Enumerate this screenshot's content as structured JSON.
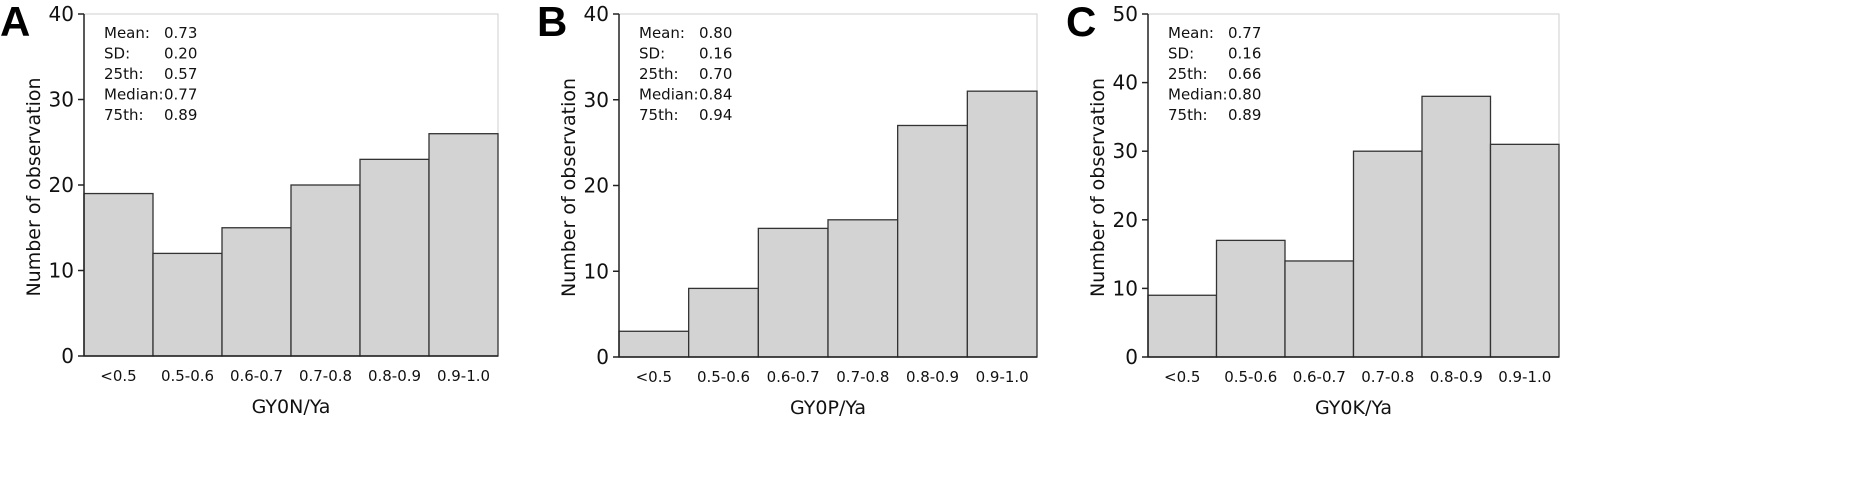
{
  "chart_data": [
    {
      "type": "bar",
      "panel_label": "A",
      "categories": [
        "<0.5",
        "0.5-0.6",
        "0.6-0.7",
        "0.7-0.8",
        "0.8-0.9",
        "0.9-1.0"
      ],
      "values": [
        19,
        12,
        15,
        20,
        23,
        26
      ],
      "xlabel": "GY0N/Ya",
      "ylabel": "Number of observation",
      "ylim": [
        0,
        40
      ],
      "yticks": [
        0,
        10,
        20,
        30,
        40
      ],
      "grid": false,
      "bar_color": "#d3d3d3",
      "stats": [
        {
          "label": "Mean:",
          "value": "0.73"
        },
        {
          "label": "SD:",
          "value": "0.20"
        },
        {
          "label": "25th:",
          "value": "0.57"
        },
        {
          "label": "Median:",
          "value": "0.77"
        },
        {
          "label": "75th:",
          "value": "0.89"
        }
      ]
    },
    {
      "type": "bar",
      "panel_label": "B",
      "categories": [
        "<0.5",
        "0.5-0.6",
        "0.6-0.7",
        "0.7-0.8",
        "0.8-0.9",
        "0.9-1.0"
      ],
      "values": [
        3,
        8,
        15,
        16,
        27,
        31
      ],
      "xlabel": "GY0P/Ya",
      "ylabel": "Number of observation",
      "ylim": [
        0,
        40
      ],
      "yticks": [
        0,
        10,
        20,
        30,
        40
      ],
      "grid": false,
      "bar_color": "#d3d3d3",
      "stats": [
        {
          "label": "Mean:",
          "value": "0.80"
        },
        {
          "label": "SD:",
          "value": "0.16"
        },
        {
          "label": "25th:",
          "value": "0.70"
        },
        {
          "label": "Median:",
          "value": "0.84"
        },
        {
          "label": "75th:",
          "value": "0.94"
        }
      ]
    },
    {
      "type": "bar",
      "panel_label": "C",
      "categories": [
        "<0.5",
        "0.5-0.6",
        "0.6-0.7",
        "0.7-0.8",
        "0.8-0.9",
        "0.9-1.0"
      ],
      "values": [
        9,
        17,
        14,
        30,
        38,
        31
      ],
      "xlabel": "GY0K/Ya",
      "ylabel": "Number of observation",
      "ylim": [
        0,
        50
      ],
      "yticks": [
        0,
        10,
        20,
        30,
        40,
        50
      ],
      "grid": false,
      "bar_color": "#d3d3d3",
      "stats": [
        {
          "label": "Mean:",
          "value": "0.77"
        },
        {
          "label": "SD:",
          "value": "0.16"
        },
        {
          "label": "25th:",
          "value": "0.66"
        },
        {
          "label": "Median:",
          "value": "0.80"
        },
        {
          "label": "75th:",
          "value": "0.89"
        }
      ]
    }
  ]
}
